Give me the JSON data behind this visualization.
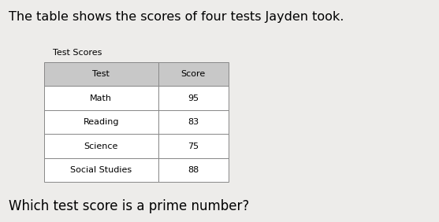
{
  "title_text": "The table shows the scores of four tests Jayden took.",
  "question_text": "Which test score is a prime number?",
  "table_title": "Test Scores",
  "col_headers": [
    "Test",
    "Score"
  ],
  "rows": [
    [
      "Math",
      "95"
    ],
    [
      "Reading",
      "83"
    ],
    [
      "Science",
      "75"
    ],
    [
      "Social Studies",
      "88"
    ]
  ],
  "header_bg": "#c8c8c8",
  "row_bg": "#ffffff",
  "border_color": "#888888",
  "title_fontsize": 11.5,
  "question_fontsize": 12,
  "table_title_fontsize": 8,
  "table_fontsize": 8,
  "bg_color": "#edecea"
}
